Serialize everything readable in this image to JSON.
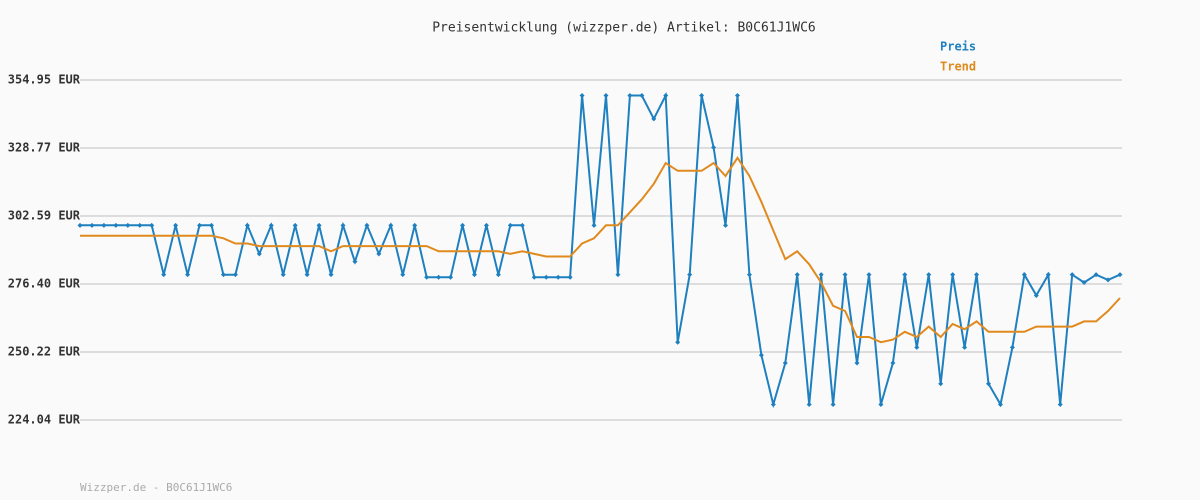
{
  "chart_data": {
    "type": "line",
    "title": "Preisentwicklung (wizzper.de) Artikel: B0C61J1WC6",
    "footer": "Wizzper.de - B0C61J1WC6",
    "ylim": [
      224.04,
      354.95
    ],
    "yticks": [
      {
        "value": 224.04,
        "label": "224.04 EUR"
      },
      {
        "value": 250.22,
        "label": "250.22 EUR"
      },
      {
        "value": 276.4,
        "label": "276.40 EUR"
      },
      {
        "value": 302.59,
        "label": "302.59 EUR"
      },
      {
        "value": 328.77,
        "label": "328.77 EUR"
      },
      {
        "value": 354.95,
        "label": "354.95 EUR"
      }
    ],
    "grid": true,
    "legend": "top-right",
    "series": [
      {
        "name": "Preis",
        "color": "#1f80c0",
        "markers": true,
        "values": [
          299,
          299,
          299,
          299,
          299,
          299,
          299,
          280,
          299,
          280,
          299,
          299,
          280,
          280,
          299,
          288,
          299,
          280,
          299,
          280,
          299,
          280,
          299,
          285,
          299,
          288,
          299,
          280,
          299,
          279,
          279,
          279,
          299,
          280,
          299,
          280,
          299,
          299,
          279,
          279,
          279,
          279,
          349,
          299,
          349,
          280,
          349,
          349,
          340,
          349,
          254,
          280,
          349,
          329,
          299,
          349,
          280,
          249,
          230,
          246,
          280,
          230,
          280,
          230,
          280,
          246,
          280,
          230,
          246,
          280,
          252,
          280,
          238,
          280,
          252,
          280,
          238,
          230,
          252,
          280,
          272,
          280,
          230,
          280,
          277,
          280,
          278,
          280
        ]
      },
      {
        "name": "Trend",
        "color": "#e08a1e",
        "markers": false,
        "values": [
          295,
          295,
          295,
          295,
          295,
          295,
          295,
          295,
          295,
          295,
          295,
          295,
          294,
          292,
          292,
          291,
          291,
          291,
          291,
          291,
          291,
          289,
          291,
          291,
          291,
          291,
          291,
          291,
          291,
          291,
          289,
          289,
          289,
          289,
          289,
          289,
          288,
          289,
          288,
          287,
          287,
          287,
          292,
          294,
          299,
          299,
          304,
          309,
          315,
          323,
          320,
          320,
          320,
          323,
          318,
          325,
          318,
          308,
          297,
          286,
          289,
          284,
          277,
          268,
          266,
          256,
          256,
          254,
          255,
          258,
          256,
          260,
          256,
          261,
          259,
          262,
          258,
          258,
          258,
          258,
          260,
          260,
          260,
          260,
          262,
          262,
          266,
          271
        ]
      }
    ]
  }
}
